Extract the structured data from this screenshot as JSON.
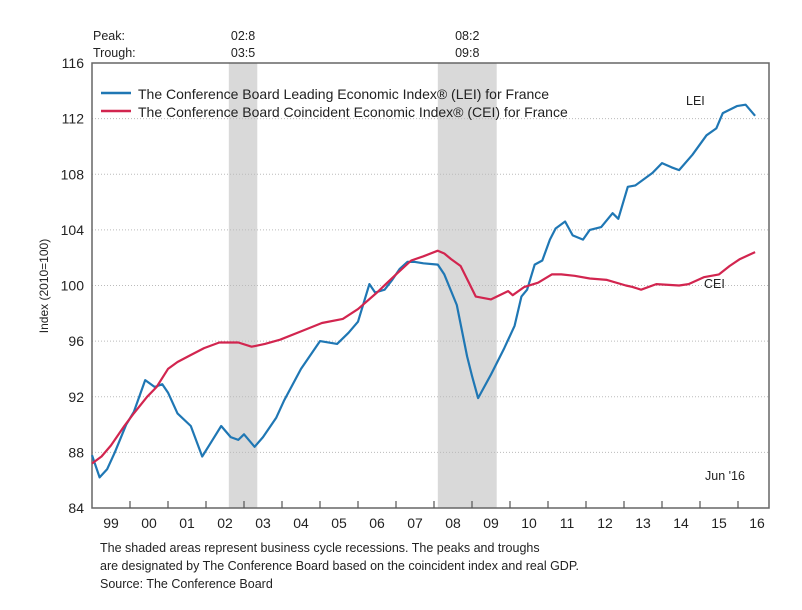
{
  "chart_data": {
    "type": "line",
    "title": "",
    "xlabel": "",
    "ylabel": "Index (2010=100)",
    "ylim": [
      84,
      116
    ],
    "yticks": [
      84,
      88,
      92,
      96,
      100,
      104,
      108,
      112,
      116
    ],
    "xlim": [
      1999,
      2016.8
    ],
    "xtick_labels": [
      "99",
      "00",
      "01",
      "02",
      "03",
      "04",
      "05",
      "06",
      "07",
      "08",
      "09",
      "10",
      "11",
      "12",
      "13",
      "14",
      "15",
      "16"
    ],
    "grid": true,
    "legend_position": "top-left",
    "legend": [
      "The Conference Board Leading Economic Index® (LEI) for France",
      "The Conference Board Coincident Economic Index® (CEI) for France"
    ],
    "recessions": [
      {
        "peak_label": "02:8",
        "trough_label": "03:5",
        "start": 2002.6,
        "end": 2003.35
      },
      {
        "peak_label": "08:2",
        "trough_label": "09:8",
        "start": 2008.1,
        "end": 2009.65
      }
    ],
    "peak_header": "Peak:",
    "trough_header": "Trough:",
    "annotations": {
      "lei": "LEI",
      "cei": "CEI",
      "date": "Jun '16"
    },
    "series": [
      {
        "name": "LEI",
        "color": "#1f77b4",
        "points": [
          [
            1999.0,
            87.8
          ],
          [
            1999.2,
            86.2
          ],
          [
            1999.4,
            86.8
          ],
          [
            1999.6,
            88.0
          ],
          [
            1999.9,
            90.0
          ],
          [
            2000.1,
            90.9
          ],
          [
            2000.4,
            93.2
          ],
          [
            2000.65,
            92.7
          ],
          [
            2000.85,
            92.9
          ],
          [
            2001.0,
            92.3
          ],
          [
            2001.25,
            90.8
          ],
          [
            2001.6,
            89.9
          ],
          [
            2001.9,
            87.7
          ],
          [
            2002.15,
            88.8
          ],
          [
            2002.4,
            89.9
          ],
          [
            2002.65,
            89.1
          ],
          [
            2002.85,
            88.9
          ],
          [
            2003.0,
            89.3
          ],
          [
            2003.28,
            88.4
          ],
          [
            2003.5,
            89.1
          ],
          [
            2003.85,
            90.5
          ],
          [
            2004.05,
            91.7
          ],
          [
            2004.5,
            94.0
          ],
          [
            2005.0,
            96.0
          ],
          [
            2005.45,
            95.8
          ],
          [
            2005.75,
            96.6
          ],
          [
            2006.0,
            97.4
          ],
          [
            2006.3,
            100.1
          ],
          [
            2006.45,
            99.5
          ],
          [
            2006.7,
            99.7
          ],
          [
            2006.9,
            100.4
          ],
          [
            2007.1,
            101.2
          ],
          [
            2007.3,
            101.7
          ],
          [
            2007.5,
            101.7
          ],
          [
            2007.72,
            101.6
          ],
          [
            2008.1,
            101.5
          ],
          [
            2008.27,
            100.8
          ],
          [
            2008.6,
            98.6
          ],
          [
            2008.87,
            94.9
          ],
          [
            2009.0,
            93.5
          ],
          [
            2009.16,
            91.9
          ],
          [
            2009.5,
            93.6
          ],
          [
            2009.85,
            95.5
          ],
          [
            2010.12,
            97.1
          ],
          [
            2010.3,
            99.2
          ],
          [
            2010.45,
            99.7
          ],
          [
            2010.65,
            101.5
          ],
          [
            2010.85,
            101.8
          ],
          [
            2011.05,
            103.3
          ],
          [
            2011.2,
            104.1
          ],
          [
            2011.45,
            104.6
          ],
          [
            2011.65,
            103.6
          ],
          [
            2011.92,
            103.3
          ],
          [
            2012.1,
            104.0
          ],
          [
            2012.4,
            104.2
          ],
          [
            2012.7,
            105.2
          ],
          [
            2012.85,
            104.8
          ],
          [
            2013.1,
            107.1
          ],
          [
            2013.3,
            107.2
          ],
          [
            2013.75,
            108.1
          ],
          [
            2014.0,
            108.8
          ],
          [
            2014.25,
            108.5
          ],
          [
            2014.45,
            108.3
          ],
          [
            2014.8,
            109.4
          ],
          [
            2015.17,
            110.8
          ],
          [
            2015.43,
            111.3
          ],
          [
            2015.6,
            112.4
          ],
          [
            2015.97,
            112.9
          ],
          [
            2016.2,
            113.0
          ],
          [
            2016.45,
            112.2
          ]
        ]
      },
      {
        "name": "CEI",
        "color": "#d2254f",
        "points": [
          [
            1999.0,
            87.2
          ],
          [
            1999.25,
            87.7
          ],
          [
            1999.5,
            88.5
          ],
          [
            1999.85,
            89.9
          ],
          [
            2000.1,
            90.8
          ],
          [
            2000.45,
            92.0
          ],
          [
            2000.7,
            92.7
          ],
          [
            2001.0,
            94.0
          ],
          [
            2001.25,
            94.5
          ],
          [
            2001.6,
            95.0
          ],
          [
            2001.95,
            95.5
          ],
          [
            2002.35,
            95.9
          ],
          [
            2002.85,
            95.9
          ],
          [
            2003.2,
            95.6
          ],
          [
            2003.55,
            95.8
          ],
          [
            2003.95,
            96.1
          ],
          [
            2004.5,
            96.7
          ],
          [
            2005.05,
            97.3
          ],
          [
            2005.6,
            97.6
          ],
          [
            2006.0,
            98.3
          ],
          [
            2006.5,
            99.5
          ],
          [
            2007.0,
            100.8
          ],
          [
            2007.4,
            101.8
          ],
          [
            2007.72,
            102.1
          ],
          [
            2008.1,
            102.5
          ],
          [
            2008.27,
            102.3
          ],
          [
            2008.45,
            101.9
          ],
          [
            2008.7,
            101.4
          ],
          [
            2008.9,
            100.3
          ],
          [
            2009.1,
            99.2
          ],
          [
            2009.5,
            99.0
          ],
          [
            2009.95,
            99.6
          ],
          [
            2010.07,
            99.3
          ],
          [
            2010.38,
            99.9
          ],
          [
            2010.74,
            100.2
          ],
          [
            2011.1,
            100.8
          ],
          [
            2011.35,
            100.8
          ],
          [
            2011.7,
            100.7
          ],
          [
            2012.1,
            100.5
          ],
          [
            2012.55,
            100.4
          ],
          [
            2013.05,
            100.0
          ],
          [
            2013.22,
            99.9
          ],
          [
            2013.45,
            99.7
          ],
          [
            2013.85,
            100.1
          ],
          [
            2014.45,
            100.0
          ],
          [
            2014.7,
            100.1
          ],
          [
            2015.1,
            100.6
          ],
          [
            2015.5,
            100.8
          ],
          [
            2015.78,
            101.4
          ],
          [
            2016.05,
            101.9
          ],
          [
            2016.45,
            102.4
          ]
        ]
      }
    ]
  },
  "footnote": {
    "line1": "The shaded areas represent business cycle recessions. The peaks and troughs",
    "line2": "are designated by The Conference Board based on the coincident index and real GDP.",
    "source": "Source: The Conference Board"
  }
}
